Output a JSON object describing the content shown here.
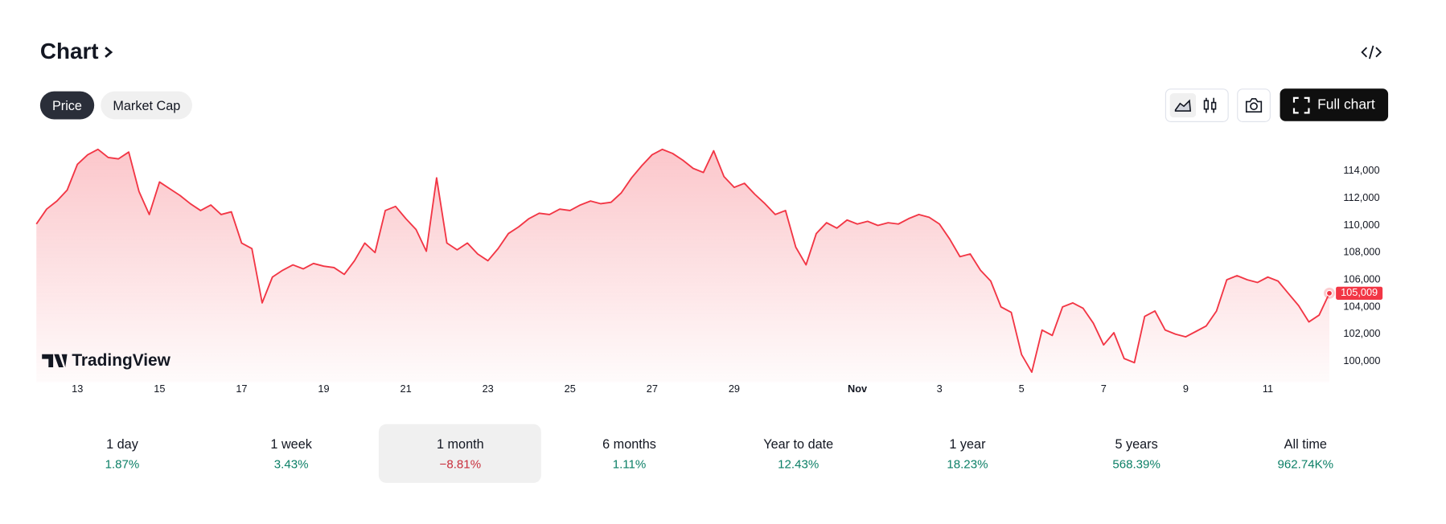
{
  "header": {
    "title": "Chart"
  },
  "tabs": [
    "Price",
    "Market Cap"
  ],
  "active_tab": 0,
  "toolbar": {
    "full_chart": "Full chart"
  },
  "watermark": "TradingView",
  "chart_data": {
    "type": "line",
    "categories": [
      null,
      null,
      null,
      null,
      "13",
      null,
      null,
      null,
      null,
      null,
      null,
      null,
      "15",
      null,
      null,
      null,
      null,
      null,
      null,
      null,
      "17",
      null,
      null,
      null,
      null,
      null,
      null,
      null,
      "19",
      null,
      null,
      null,
      null,
      null,
      null,
      null,
      "21",
      null,
      null,
      null,
      null,
      null,
      null,
      null,
      "23",
      null,
      null,
      null,
      null,
      null,
      null,
      null,
      "25",
      null,
      null,
      null,
      null,
      null,
      null,
      null,
      "27",
      null,
      null,
      null,
      null,
      null,
      null,
      null,
      "29",
      null,
      null,
      null,
      null,
      null,
      null,
      null,
      null,
      null,
      null,
      null,
      "Nov",
      null,
      null,
      null,
      null,
      null,
      null,
      null,
      "3",
      null,
      null,
      null,
      null,
      null,
      null,
      null,
      "5",
      null,
      null,
      null,
      null,
      null,
      null,
      null,
      "7",
      null,
      null,
      null,
      null,
      null,
      null,
      null,
      "9",
      null,
      null,
      null,
      null,
      null,
      null,
      null,
      "11",
      null,
      null,
      null,
      null,
      null,
      null
    ],
    "color": "#f23645",
    "values": [
      110100,
      111200,
      111800,
      112600,
      114500,
      115200,
      115600,
      115000,
      114900,
      115400,
      112500,
      110800,
      113200,
      112700,
      112200,
      111600,
      111100,
      111500,
      110800,
      111000,
      108700,
      108300,
      104300,
      106200,
      106700,
      107100,
      106800,
      107200,
      107000,
      106900,
      106400,
      107400,
      108700,
      108000,
      111100,
      111400,
      110500,
      109700,
      108100,
      113500,
      108700,
      108200,
      108700,
      107900,
      107400,
      108300,
      109400,
      109900,
      110500,
      110900,
      110800,
      111200,
      111100,
      111500,
      111800,
      111600,
      111700,
      112400,
      113500,
      114400,
      115200,
      115600,
      115300,
      114800,
      114200,
      113900,
      115500,
      113600,
      112800,
      113100,
      112300,
      111600,
      110800,
      111100,
      108400,
      107100,
      109400,
      110200,
      109800,
      110400,
      110100,
      110300,
      110000,
      110200,
      110100,
      110500,
      110800,
      110600,
      110100,
      109000,
      107700,
      107900,
      106700,
      105900,
      104000,
      103600,
      100500,
      99200,
      102300,
      101900,
      104000,
      104300,
      103900,
      102800,
      101200,
      102100,
      100200,
      99900,
      103300,
      103700,
      102300,
      102000,
      101800,
      102200,
      102600,
      103700,
      106000,
      106300,
      106000,
      105800,
      106200,
      105900,
      105000,
      104100,
      102900,
      103400,
      105009
    ],
    "value_labels": [
      null,
      null,
      null,
      null,
      null,
      null,
      null,
      null,
      null,
      null,
      null,
      null,
      null,
      null,
      null,
      null,
      null,
      null,
      null,
      null,
      null,
      null,
      null,
      null,
      null,
      null,
      null,
      null,
      null,
      null,
      null,
      null,
      null,
      null,
      null,
      null,
      null,
      null,
      null,
      null,
      null,
      null,
      null,
      null,
      null,
      null,
      null,
      null,
      null,
      null,
      null,
      null,
      null,
      null,
      null,
      null,
      null,
      null,
      null,
      null,
      null,
      null,
      null,
      null,
      null,
      null,
      null,
      null,
      null,
      null,
      null,
      null,
      null,
      null,
      null,
      null,
      null,
      null,
      null,
      null,
      null,
      null,
      null,
      null,
      null,
      null,
      null,
      null,
      null,
      null,
      null,
      null,
      null,
      null,
      null,
      null,
      null,
      null,
      null,
      null,
      null,
      null,
      null,
      null,
      null,
      null,
      null,
      null,
      null,
      null,
      null,
      null,
      null,
      null,
      null,
      null,
      null,
      null,
      null,
      null,
      null,
      null,
      null,
      null,
      null,
      null,
      "105,009"
    ],
    "ylim": [
      98800,
      116300
    ],
    "yticks": [
      {
        "value": 100000,
        "label": "100,000"
      },
      {
        "value": 102000,
        "label": "102,000"
      },
      {
        "value": 104000,
        "label": "104,000"
      },
      {
        "value": 106000,
        "label": "106,000"
      },
      {
        "value": 108000,
        "label": "108,000"
      },
      {
        "value": 110000,
        "label": "110,000"
      },
      {
        "value": 112000,
        "label": "112,000"
      },
      {
        "value": 114000,
        "label": "114,000"
      }
    ],
    "grid": false
  },
  "periods": [
    {
      "label": "1 day",
      "change": "1.87%"
    },
    {
      "label": "1 week",
      "change": "3.43%"
    },
    {
      "label": "1 month",
      "change": "−8.81%"
    },
    {
      "label": "6 months",
      "change": "1.11%"
    },
    {
      "label": "Year to date",
      "change": "12.43%"
    },
    {
      "label": "1 year",
      "change": "18.23%"
    },
    {
      "label": "5 years",
      "change": "568.39%"
    },
    {
      "label": "All time",
      "change": "962.74K%"
    }
  ],
  "selected_period": 2
}
